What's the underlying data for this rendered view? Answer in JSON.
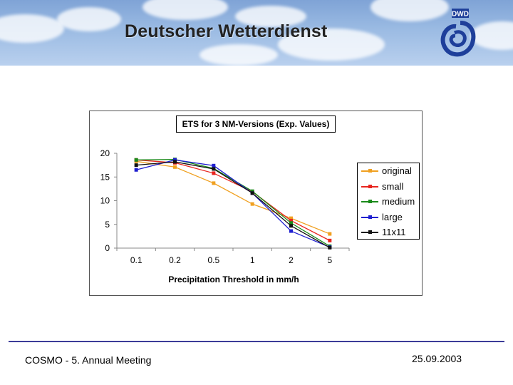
{
  "header": {
    "org_name": "Deutscher Wetterdienst",
    "logo_text": "DWD"
  },
  "footer": {
    "meeting": "COSMO - 5. Annual Meeting",
    "date": "25.09.2003"
  },
  "chart_data": {
    "type": "line",
    "title": "ETS for 3 NM-Versions (Exp. Values)",
    "xlabel": "Precipitation Threshold in mm/h",
    "ylabel": "",
    "categories": [
      "0.1",
      "0.2",
      "0.5",
      "1",
      "2",
      "5"
    ],
    "ylim": [
      0,
      20
    ],
    "yticks": [
      0,
      5,
      10,
      15,
      20
    ],
    "legend_position": "right",
    "series": [
      {
        "name": "original",
        "color": "#f0a020",
        "values": [
          18.3,
          17.1,
          13.7,
          9.3,
          6.3,
          3.0
        ]
      },
      {
        "name": "small",
        "color": "#e8251f",
        "values": [
          18.6,
          18.0,
          15.8,
          11.9,
          5.8,
          1.6
        ]
      },
      {
        "name": "medium",
        "color": "#1a8a1a",
        "values": [
          18.6,
          18.7,
          16.8,
          12.0,
          5.3,
          0.4
        ]
      },
      {
        "name": "large",
        "color": "#1f1fd0",
        "values": [
          16.5,
          18.6,
          17.4,
          11.6,
          3.6,
          0.2
        ]
      },
      {
        "name": "11x11",
        "color": "#111111",
        "values": [
          17.5,
          18.2,
          16.7,
          11.6,
          4.7,
          0.1
        ]
      }
    ]
  }
}
